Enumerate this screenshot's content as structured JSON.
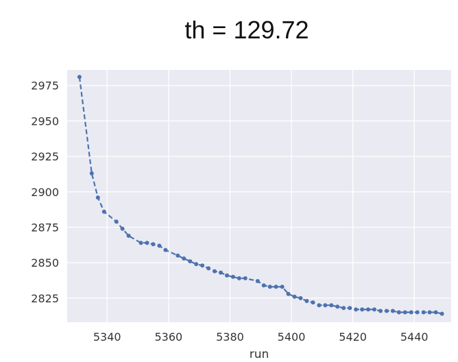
{
  "chart_data": {
    "type": "line",
    "title": "th = 129.72",
    "xlabel": "run",
    "ylabel": "",
    "xlim": [
      5327,
      5452
    ],
    "ylim": [
      2808,
      2986
    ],
    "x_ticks": [
      5340,
      5360,
      5380,
      5400,
      5420,
      5440
    ],
    "y_ticks": [
      2825,
      2850,
      2875,
      2900,
      2925,
      2950,
      2975
    ],
    "grid": true,
    "line_style": "dashed",
    "marker": "circle",
    "colors": {
      "series": "#4c72b0",
      "plot_background": "#eaeaf2",
      "grid": "#ffffff"
    },
    "series": [
      {
        "x": [
          5331,
          5335,
          5337,
          5339,
          5343,
          5345,
          5347,
          5351,
          5353,
          5355,
          5357,
          5359,
          5363,
          5365,
          5367,
          5369,
          5371,
          5373,
          5375,
          5377,
          5379,
          5381,
          5383,
          5385,
          5389,
          5391,
          5393,
          5395,
          5397,
          5399,
          5401,
          5403,
          5405,
          5407,
          5409,
          5411,
          5413,
          5415,
          5417,
          5419,
          5421,
          5423,
          5425,
          5427,
          5429,
          5431,
          5433,
          5435,
          5437,
          5439,
          5441,
          5443,
          5445,
          5447,
          5449
        ],
        "y": [
          2981,
          2913,
          2896,
          2886,
          2879,
          2874,
          2869,
          2864,
          2864,
          2863,
          2862,
          2859,
          2855,
          2853,
          2851,
          2849,
          2848,
          2846,
          2844,
          2843,
          2841,
          2840,
          2839,
          2839,
          2837,
          2834,
          2833,
          2833,
          2833,
          2828,
          2826,
          2825,
          2823,
          2822,
          2820,
          2820,
          2820,
          2819,
          2818,
          2818,
          2817,
          2817,
          2817,
          2817,
          2816,
          2816,
          2816,
          2815,
          2815,
          2815,
          2815,
          2815,
          2815,
          2815,
          2814
        ]
      }
    ]
  }
}
